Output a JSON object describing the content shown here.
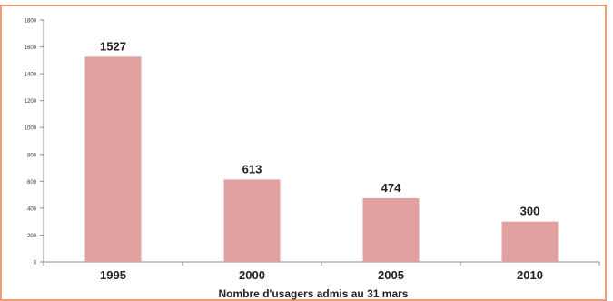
{
  "chart_data": {
    "type": "bar",
    "categories": [
      "1995",
      "2000",
      "2005",
      "2010"
    ],
    "values": [
      1527,
      613,
      474,
      300
    ],
    "data_labels": [
      "1527",
      "613",
      "474",
      "300"
    ],
    "title": "",
    "xlabel": "Nombre d'usagers admis au 31 mars",
    "ylabel": "",
    "ylim": [
      0,
      1800
    ],
    "yticks": [
      "0",
      "200",
      "400",
      "600",
      "800",
      "1000",
      "1200",
      "1400",
      "1600",
      "1800"
    ],
    "grid": false,
    "legend": "none"
  },
  "colors": {
    "bar": "#e2a1a1",
    "frame": "#e8a07c",
    "axis": "#8c8c8c",
    "text": "#222222"
  }
}
